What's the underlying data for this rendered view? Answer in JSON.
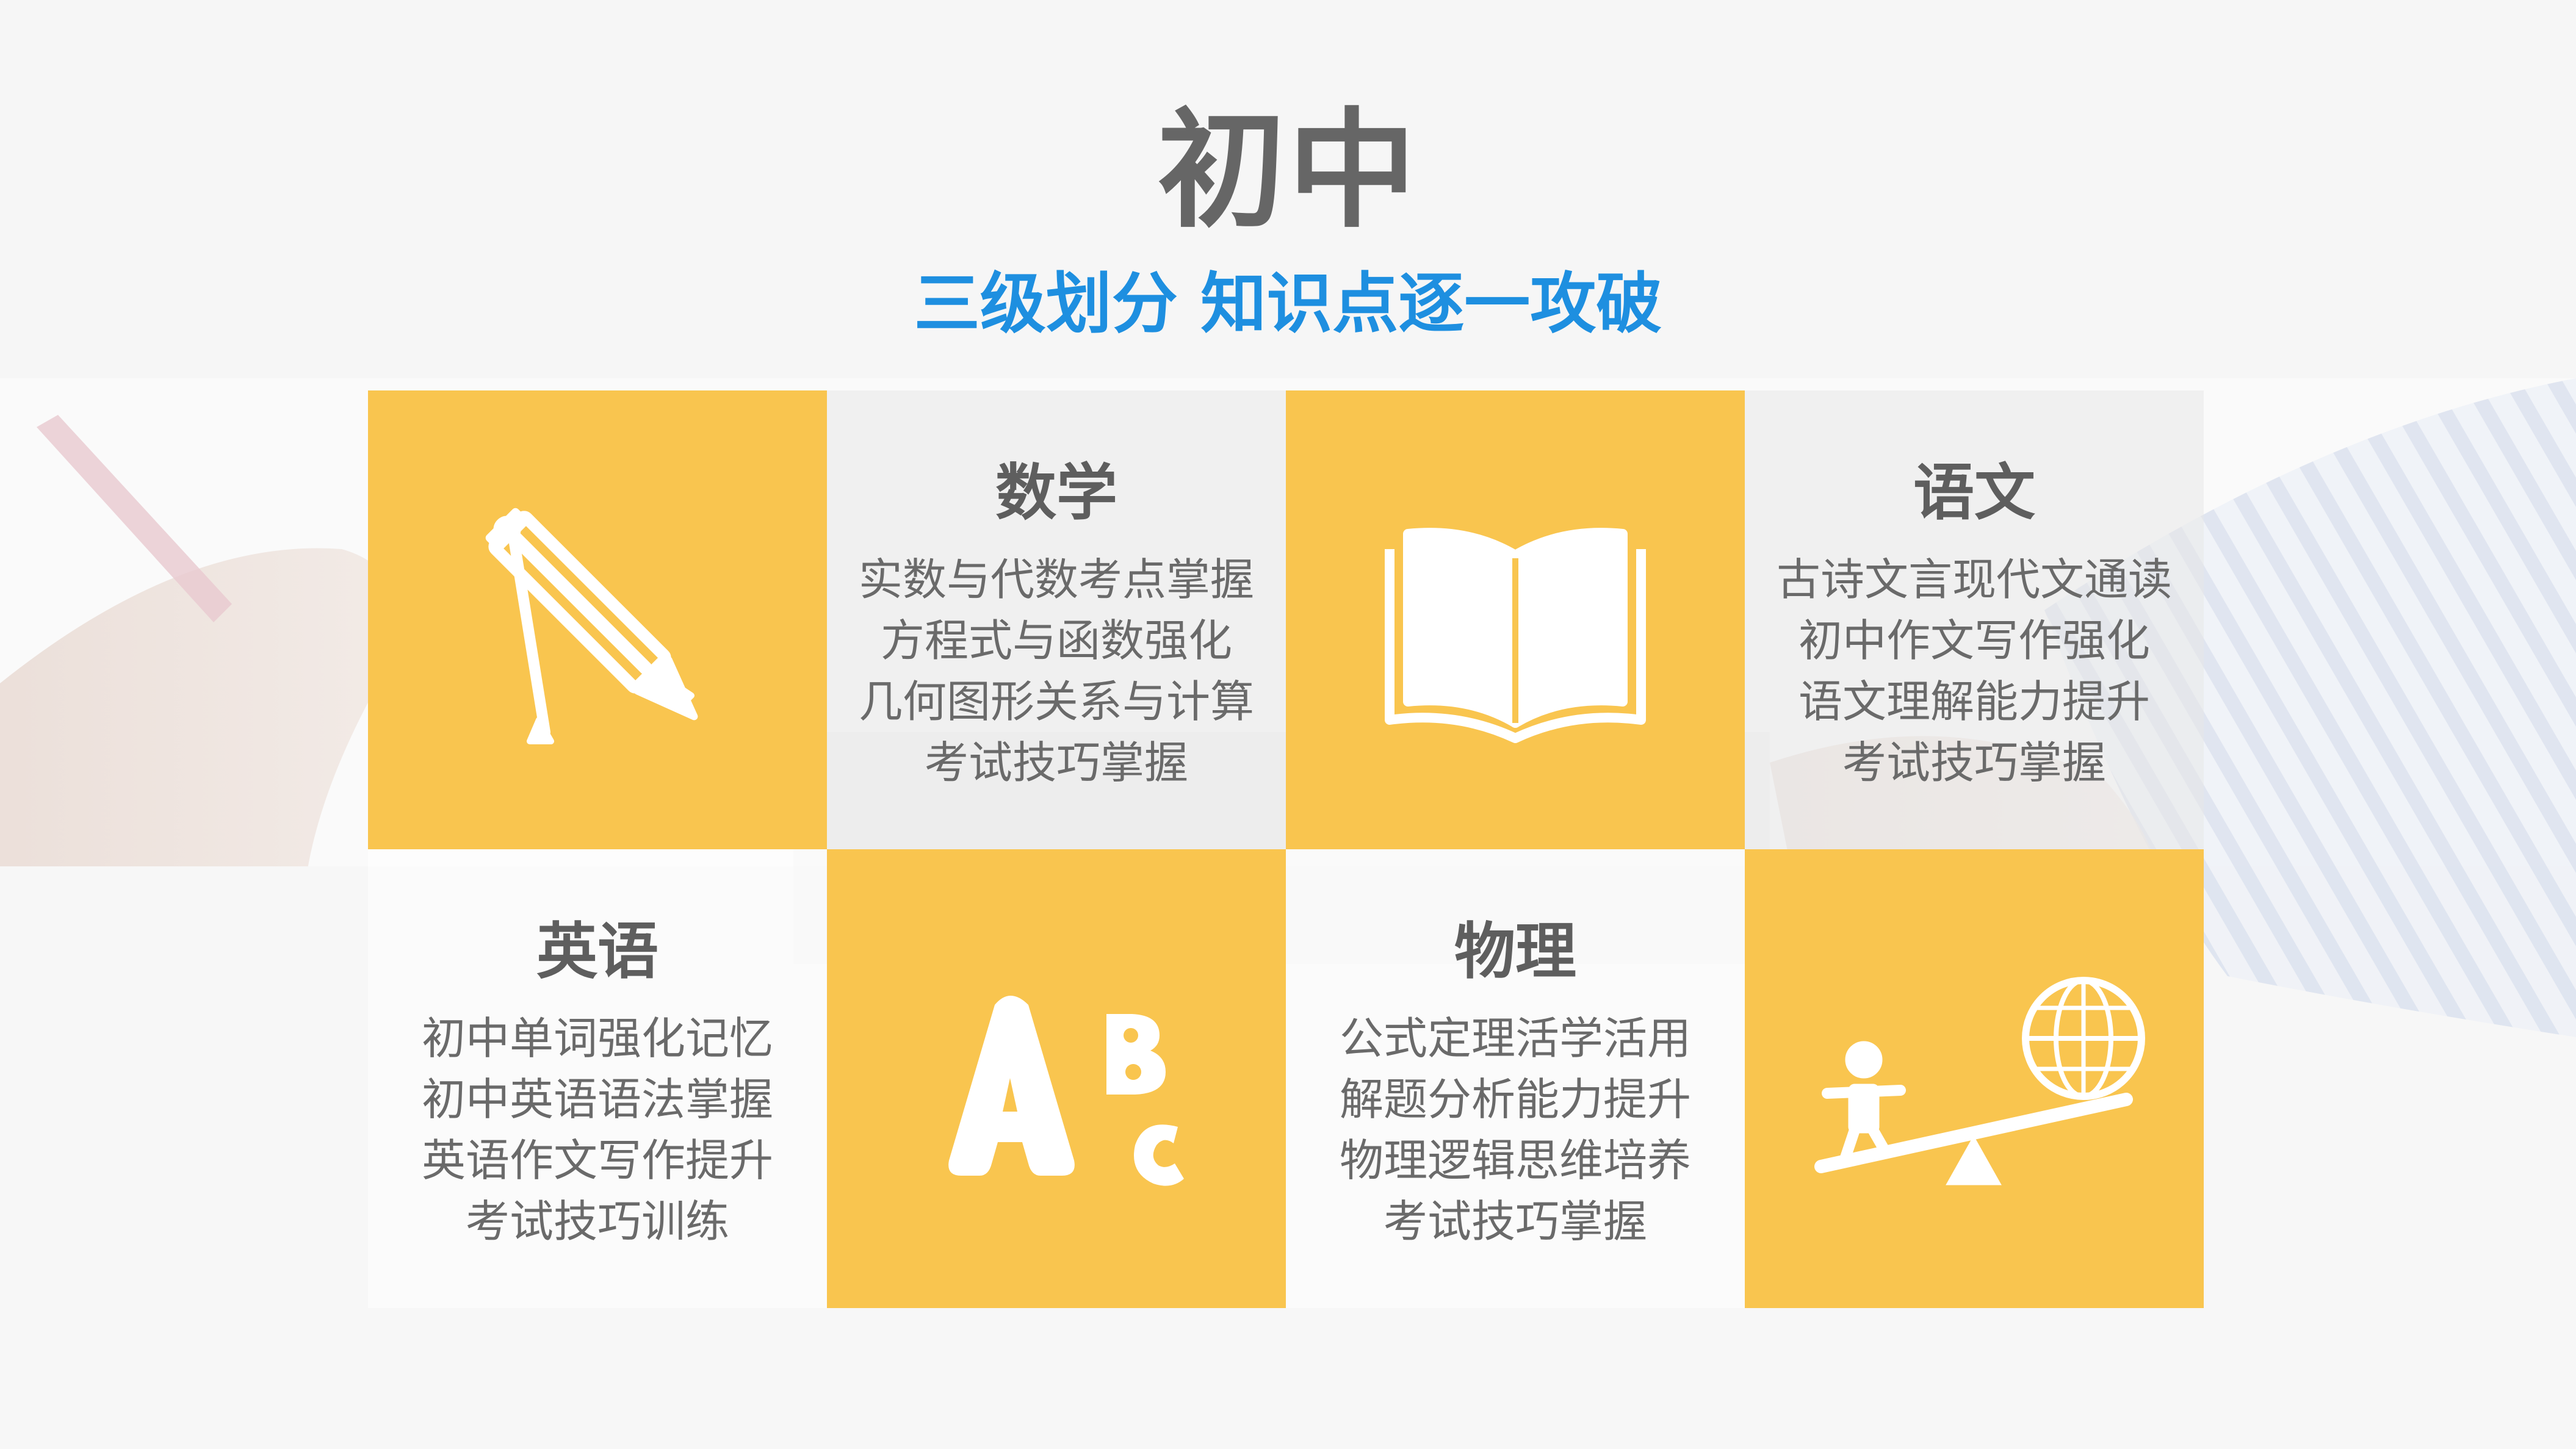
{
  "title": "初中",
  "subtitle": "三级划分  知识点逐一攻破",
  "colors": {
    "accent_yellow": "#f9c54f",
    "title_gray": "#666666",
    "subtitle_blue": "#1e8fe0"
  },
  "subjects": {
    "math": {
      "name": "数学",
      "icon": "compass-pencil-icon",
      "items": [
        "实数与代数考点掌握",
        "方程式与函数强化",
        "几何图形关系与计算",
        "考试技巧掌握"
      ]
    },
    "chinese": {
      "name": "语文",
      "icon": "open-book-icon",
      "items": [
        "古诗文言现代文通读",
        "初中作文写作强化",
        "语文理解能力提升",
        "考试技巧掌握"
      ]
    },
    "english": {
      "name": "英语",
      "icon": "abc-letters-icon",
      "items": [
        "初中单词强化记忆",
        "初中英语语法掌握",
        "英语作文写作提升",
        "考试技巧训练"
      ]
    },
    "physics": {
      "name": "物理",
      "icon": "seesaw-globe-icon",
      "items": [
        "公式定理活学活用",
        "解题分析能力提升",
        "物理逻辑思维培养",
        "考试技巧掌握"
      ]
    }
  }
}
